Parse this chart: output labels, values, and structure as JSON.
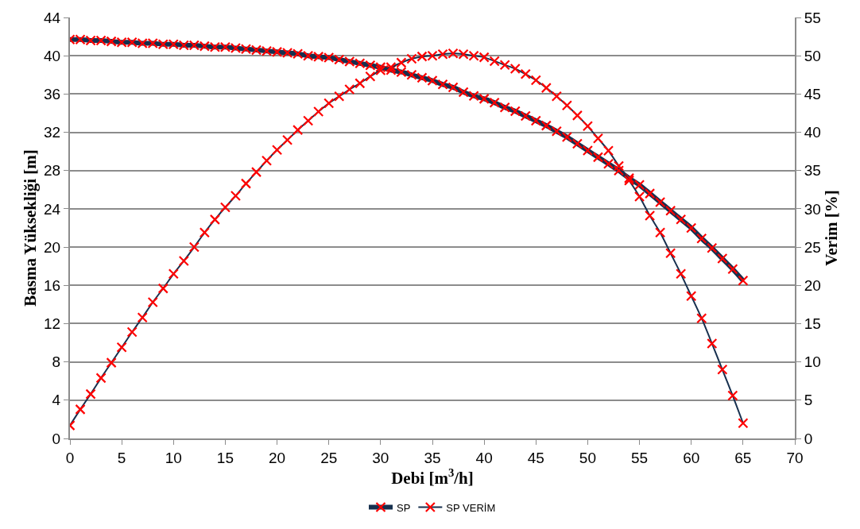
{
  "chart_data": {
    "type": "line",
    "xlabel": "Debi [m$^{3}$/h]",
    "ylabel": "Basma Yüksekliği [m]",
    "y2label": "Verim [%]",
    "x": [
      0,
      1,
      2,
      3,
      4,
      5,
      6,
      7,
      8,
      9,
      10,
      11,
      12,
      13,
      14,
      15,
      16,
      17,
      18,
      19,
      20,
      21,
      22,
      23,
      24,
      25,
      26,
      27,
      28,
      29,
      30,
      31,
      32,
      33,
      34,
      35,
      36,
      37,
      38,
      39,
      40,
      41,
      42,
      43,
      44,
      45,
      46,
      47,
      48,
      49,
      50,
      51,
      52,
      53,
      54,
      55,
      56,
      57,
      58,
      59,
      60,
      61,
      62,
      63,
      64,
      65
    ],
    "series": [
      {
        "name": "SP",
        "color": "#17304f",
        "values": [
          41.7,
          41.7,
          41.6,
          41.6,
          41.5,
          41.4,
          41.4,
          41.3,
          41.3,
          41.2,
          41.2,
          41.1,
          41.1,
          41.0,
          40.9,
          40.9,
          40.8,
          40.7,
          40.6,
          40.5,
          40.4,
          40.3,
          40.2,
          40.0,
          39.9,
          39.8,
          39.6,
          39.4,
          39.2,
          39.0,
          38.8,
          38.5,
          38.3,
          38.0,
          37.7,
          37.4,
          37.0,
          36.7,
          36.2,
          35.8,
          35.5,
          35.1,
          34.6,
          34.2,
          33.7,
          33.2,
          32.7,
          32.1,
          31.5,
          30.8,
          30.1,
          29.4,
          28.7,
          28.0,
          27.2,
          26.5,
          25.6,
          24.7,
          23.8,
          22.9,
          22.0,
          20.9,
          19.9,
          18.8,
          17.7,
          16.5
        ]
      },
      {
        "name": "SP VERİM",
        "color": "#17304f",
        "axis": "y2",
        "values": [
          1.7,
          3.8,
          5.8,
          7.9,
          9.9,
          11.9,
          13.9,
          15.8,
          17.8,
          19.6,
          21.5,
          23.2,
          25.0,
          26.9,
          28.6,
          30.2,
          31.7,
          33.3,
          34.8,
          36.3,
          37.7,
          39.0,
          40.3,
          41.5,
          42.7,
          43.8,
          44.7,
          45.6,
          46.4,
          47.3,
          48.1,
          48.5,
          49.1,
          49.6,
          49.9,
          50.0,
          50.2,
          50.3,
          50.2,
          50.0,
          49.8,
          49.3,
          48.8,
          48.3,
          47.6,
          46.8,
          45.8,
          44.7,
          43.5,
          42.2,
          40.8,
          39.2,
          37.6,
          35.6,
          33.7,
          31.6,
          29.1,
          26.9,
          24.2,
          21.5,
          18.6,
          15.7,
          12.4,
          9.0,
          5.6,
          2.0
        ]
      }
    ],
    "marker": "cross",
    "xlim": [
      0,
      70
    ],
    "xticks": [
      0,
      5,
      10,
      15,
      20,
      25,
      30,
      35,
      40,
      45,
      50,
      55,
      60,
      65,
      70
    ],
    "ylim": [
      0,
      44
    ],
    "yticks": [
      0,
      4,
      8,
      12,
      16,
      20,
      24,
      28,
      32,
      36,
      40,
      44
    ],
    "y2lim": [
      0,
      55
    ],
    "y2ticks": [
      0,
      5,
      10,
      15,
      20,
      25,
      30,
      35,
      40,
      45,
      50,
      55
    ],
    "grid": "y",
    "legend": "bottom"
  }
}
